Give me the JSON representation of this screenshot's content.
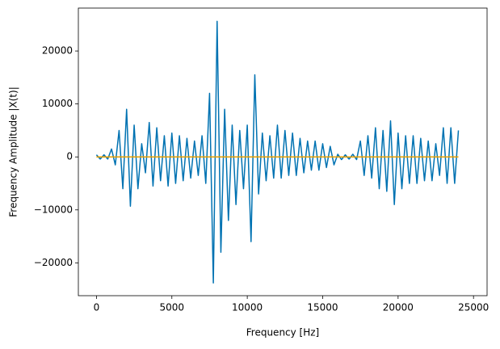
{
  "chart_data": {
    "type": "line",
    "xlabel": "Frequency [Hz]",
    "ylabel": "Frequency Amplitude |X(t)|",
    "xlim": [
      -1200,
      25900
    ],
    "ylim": [
      -26200,
      28100
    ],
    "xticks": [
      0,
      5000,
      10000,
      15000,
      20000,
      25000
    ],
    "yticks": [
      {
        "value": -20000,
        "label": "−20000"
      },
      {
        "value": -10000,
        "label": "−10000"
      },
      0,
      10000,
      20000
    ],
    "series": [
      {
        "color": "#0072b2",
        "x": [
          0,
          250,
          500,
          750,
          1000,
          1250,
          1500,
          1750,
          2000,
          2250,
          2500,
          2750,
          3000,
          3250,
          3500,
          3750,
          4000,
          4250,
          4500,
          4750,
          5000,
          5250,
          5500,
          5750,
          6000,
          6250,
          6500,
          6750,
          7000,
          7250,
          7500,
          7750,
          8000,
          8250,
          8500,
          8750,
          9000,
          9250,
          9500,
          9750,
          10000,
          10250,
          10500,
          10750,
          11000,
          11250,
          11500,
          11750,
          12000,
          12250,
          12500,
          12750,
          13000,
          13250,
          13500,
          13750,
          14000,
          14250,
          14500,
          14750,
          15000,
          15250,
          15500,
          15750,
          16000,
          16250,
          16500,
          16750,
          17000,
          17250,
          17500,
          17750,
          18000,
          18250,
          18500,
          18750,
          19000,
          19250,
          19500,
          19750,
          20000,
          20250,
          20500,
          20750,
          21000,
          21250,
          21500,
          21750,
          22000,
          22250,
          22500,
          22750,
          23000,
          23250,
          23500,
          23750,
          24000
        ],
        "values": [
          400,
          -400,
          400,
          -400,
          1500,
          -1500,
          5000,
          -6000,
          9000,
          -9300,
          6000,
          -6000,
          2500,
          -3000,
          6500,
          -5500,
          5500,
          -4500,
          4000,
          -5500,
          4500,
          -5000,
          4000,
          -4500,
          3500,
          -4000,
          3000,
          -3500,
          4000,
          -5000,
          12000,
          -23800,
          25600,
          -18000,
          9000,
          -12000,
          6000,
          -9000,
          5000,
          -6000,
          6000,
          -16000,
          15500,
          -7000,
          4500,
          -4500,
          4000,
          -4000,
          6000,
          -4000,
          5000,
          -3500,
          4500,
          -3500,
          3500,
          -3000,
          3000,
          -2500,
          3000,
          -2500,
          2500,
          -2000,
          2000,
          -1500,
          500,
          -500,
          400,
          -400,
          500,
          -500,
          3000,
          -3500,
          4000,
          -4000,
          5500,
          -6000,
          5000,
          -6500,
          6800,
          -9000,
          4500,
          -6000,
          4000,
          -5000,
          4000,
          -5000,
          3500,
          -4500,
          3000,
          -4500,
          2500,
          -3500,
          5500,
          -5000,
          5500,
          -5000,
          5000
        ]
      },
      {
        "color": "#e69f00",
        "x": [
          0,
          24000
        ],
        "values": [
          0,
          0
        ]
      }
    ]
  }
}
